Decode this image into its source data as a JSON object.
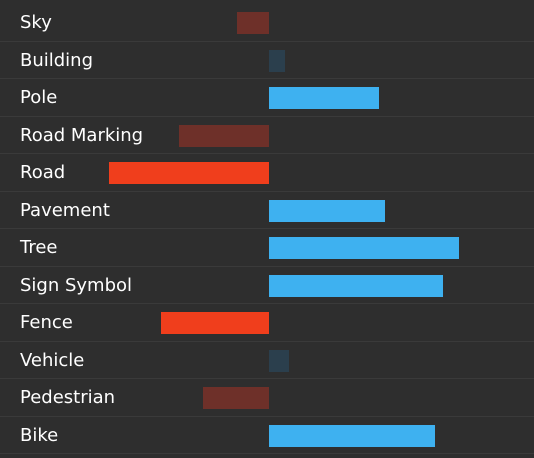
{
  "chart_data": {
    "type": "bar",
    "orientation": "horizontal",
    "categories": [
      "Sky",
      "Building",
      "Pole",
      "Road Marking",
      "Road",
      "Pavement",
      "Tree",
      "Sign Symbol",
      "Fence",
      "Vehicle",
      "Pedestrian",
      "Bike"
    ],
    "values": [
      -0.16,
      0.08,
      0.55,
      -0.45,
      -0.8,
      0.58,
      0.95,
      0.87,
      -0.54,
      0.1,
      -0.33,
      0.83
    ],
    "xlim": [
      -1,
      1
    ],
    "colors": {
      "positive_strong": "#3eb1f0",
      "positive_weak": "#2b3f4d",
      "negative_strong": "#f03e1c",
      "negative_weak": "#6e3029"
    },
    "grid": false,
    "legend": "none"
  }
}
